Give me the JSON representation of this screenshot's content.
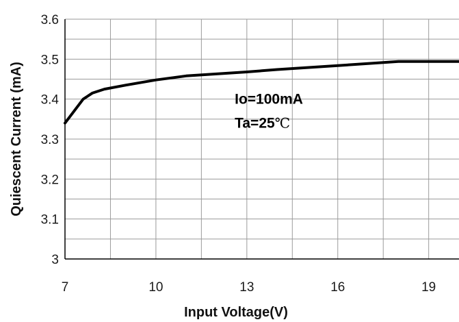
{
  "chart_data": {
    "type": "line",
    "title": "",
    "xlabel": "Input Voltage(V)",
    "ylabel": "Quiescent Current (mA)",
    "xlim": [
      7,
      20
    ],
    "ylim": [
      3.0,
      3.6
    ],
    "x_ticks": [
      7,
      10,
      13,
      16,
      19
    ],
    "x_tick_labels": [
      "7",
      "10",
      "13",
      "16",
      "19"
    ],
    "y_ticks": [
      3.0,
      3.1,
      3.2,
      3.3,
      3.4,
      3.5,
      3.6
    ],
    "y_tick_labels": [
      "3",
      "3.1",
      "3.2",
      "3.3",
      "3.4",
      "3.5",
      "3.6"
    ],
    "x_minor_step": 1.5,
    "y_minor_step": 0.05,
    "grid": true,
    "series": [
      {
        "color": "#000000",
        "x": [
          7.0,
          7.3,
          7.6,
          7.9,
          8.3,
          9.0,
          10.0,
          11.0,
          12.0,
          13.0,
          14.0,
          15.0,
          16.0,
          17.0,
          18.0,
          19.0,
          20.0
        ],
        "y": [
          3.34,
          3.37,
          3.4,
          3.415,
          3.425,
          3.435,
          3.448,
          3.458,
          3.463,
          3.468,
          3.474,
          3.479,
          3.484,
          3.489,
          3.494,
          3.494,
          3.494
        ]
      }
    ],
    "annotations": [
      {
        "text": "Io=100mA",
        "x": 12.6,
        "y": 3.4
      },
      {
        "text": "Ta=25",
        "unit": "℃",
        "x": 12.6,
        "y": 3.34
      }
    ],
    "colors": {
      "grid": "#9a9a9a",
      "axis": "#000000",
      "line": "#000000",
      "background": "#ffffff"
    }
  }
}
